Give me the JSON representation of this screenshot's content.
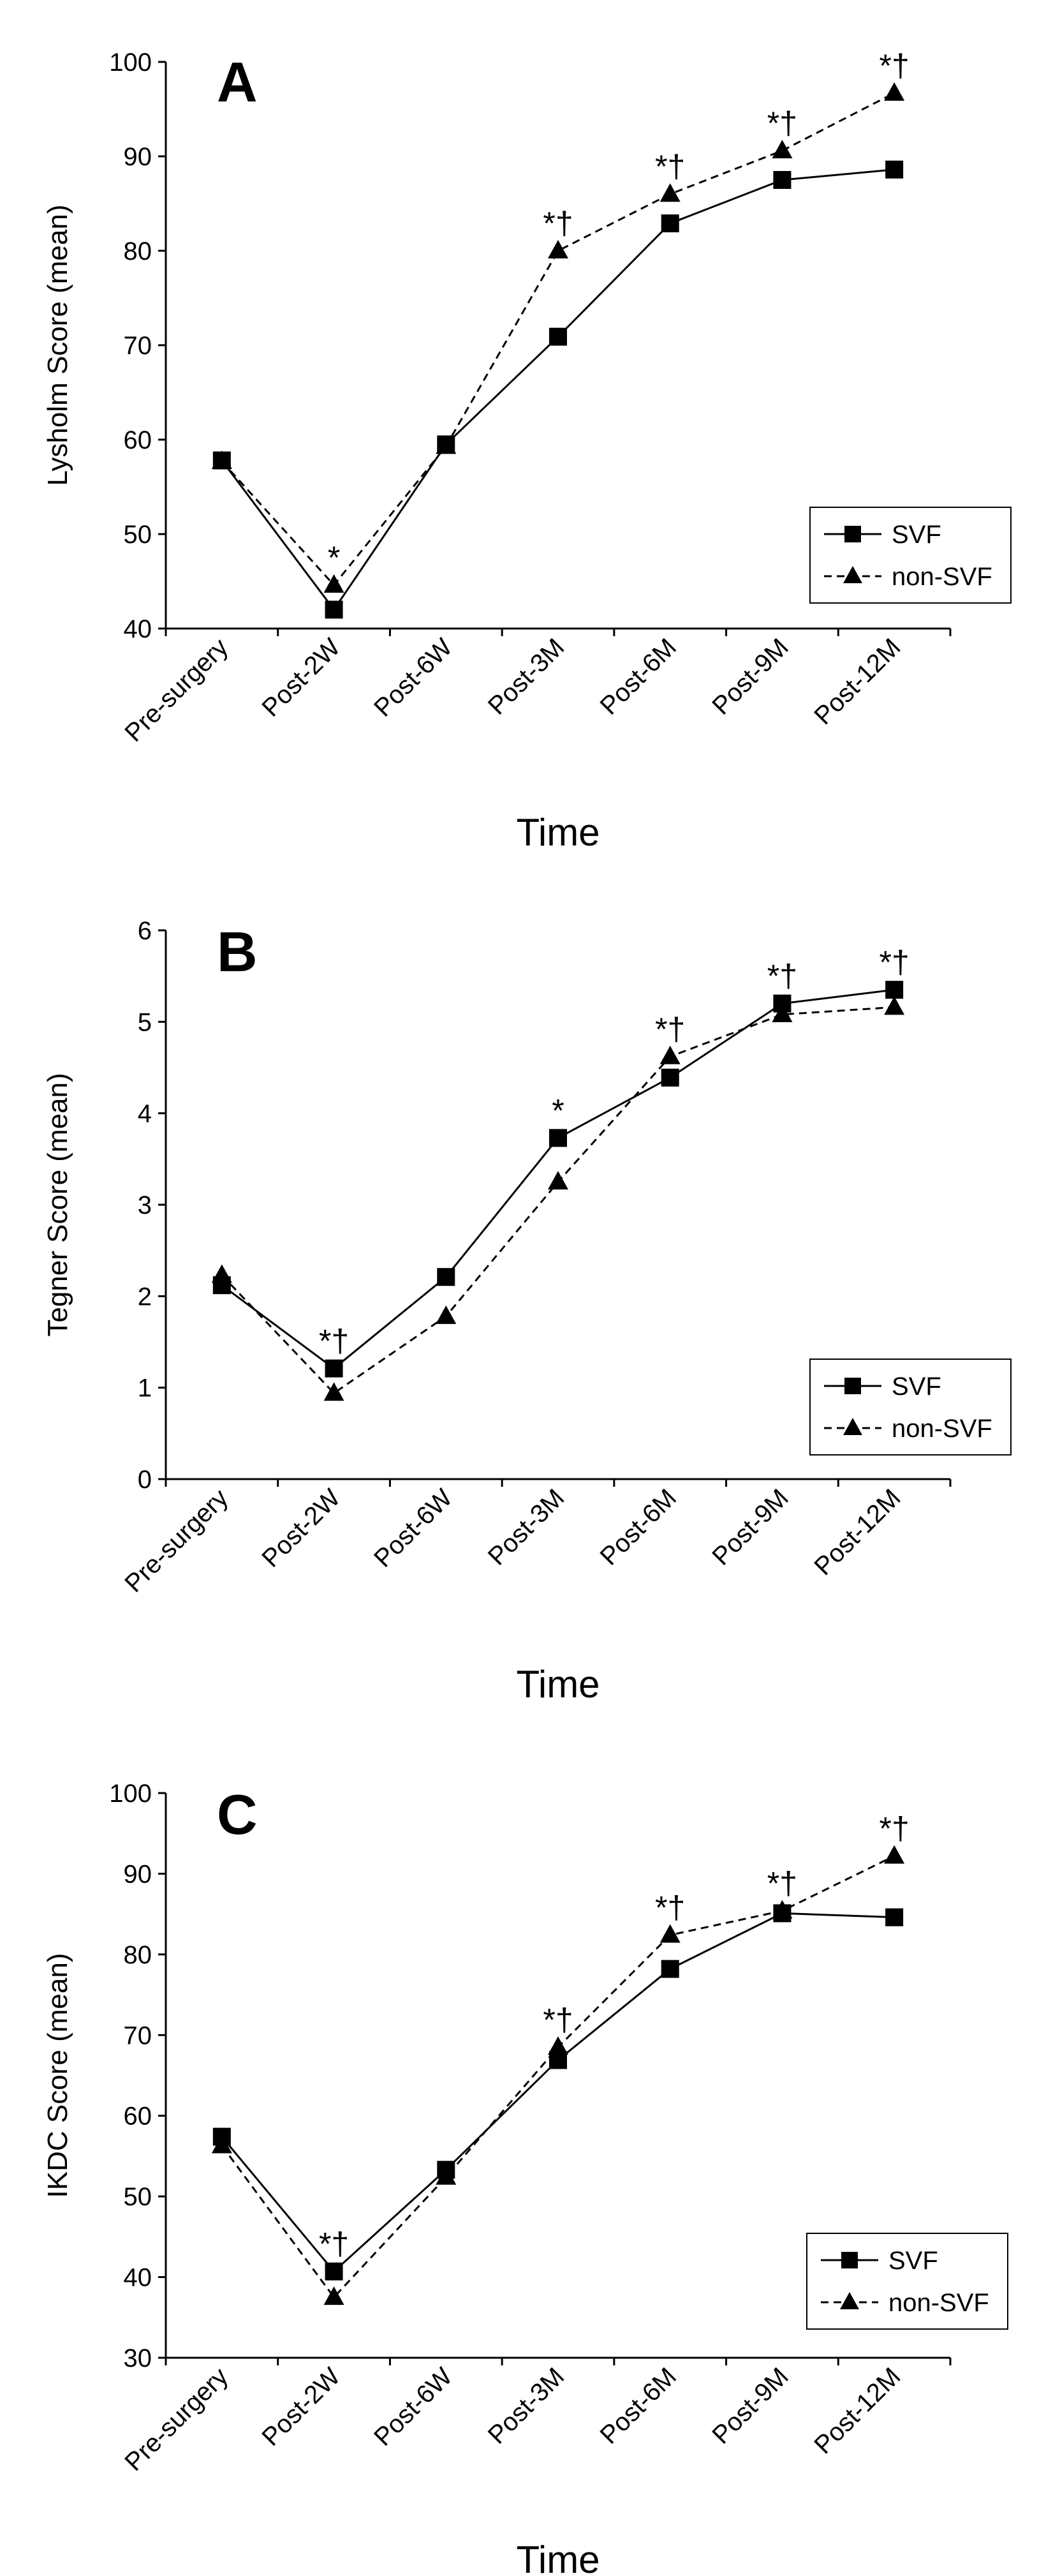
{
  "chart_data": [
    {
      "type": "line",
      "panel": "A",
      "title": "",
      "xlabel": "Time",
      "ylabel": "Lysholm Score (mean)",
      "ylim": [
        40,
        100
      ],
      "ytick_step": 10,
      "categories": [
        "Pre-surgery",
        "Post-2W",
        "Post-6W",
        "Post-3M",
        "Post-6M",
        "Post-9M",
        "Post-12M"
      ],
      "series": [
        {
          "name": "SVF",
          "marker": "square",
          "dash": "solid",
          "values": [
            57.8,
            42.0,
            59.5,
            70.9,
            82.9,
            87.5,
            88.6
          ]
        },
        {
          "name": "non-SVF",
          "marker": "triangle",
          "dash": "dashed",
          "values": [
            57.7,
            44.6,
            59.3,
            80.0,
            86.0,
            90.6,
            96.7
          ]
        }
      ],
      "annotations": [
        "",
        "*",
        "",
        "*†",
        "*†",
        "*†",
        "*†"
      ],
      "legend": "bottom-right"
    },
    {
      "type": "line",
      "panel": "B",
      "title": "",
      "xlabel": "Time",
      "ylabel": "Tegner Score (mean)",
      "ylim": [
        0,
        6
      ],
      "ytick_step": 1,
      "categories": [
        "Pre-surgery",
        "Post-2W",
        "Post-6W",
        "Post-3M",
        "Post-6M",
        "Post-9M",
        "Post-12M"
      ],
      "series": [
        {
          "name": "SVF",
          "marker": "square",
          "dash": "solid",
          "values": [
            2.12,
            1.21,
            2.21,
            3.73,
            4.39,
            5.2,
            5.35
          ]
        },
        {
          "name": "non-SVF",
          "marker": "triangle",
          "dash": "dashed",
          "values": [
            2.23,
            0.94,
            1.78,
            3.25,
            4.62,
            5.08,
            5.16
          ]
        }
      ],
      "annotations": [
        "",
        "*†",
        "",
        "*",
        "*†",
        "*†",
        "*†"
      ],
      "legend": "bottom-right"
    },
    {
      "type": "line",
      "panel": "C",
      "title": "",
      "xlabel": "Time",
      "ylabel": "IKDC Score (mean)",
      "ylim": [
        30,
        100
      ],
      "ytick_step": 10,
      "categories": [
        "Pre-surgery",
        "Post-2W",
        "Post-6W",
        "Post-3M",
        "Post-6M",
        "Post-9M",
        "Post-12M"
      ],
      "series": [
        {
          "name": "SVF",
          "marker": "square",
          "dash": "solid",
          "values": [
            57.4,
            40.7,
            53.3,
            66.9,
            78.2,
            85.1,
            84.6
          ]
        },
        {
          "name": "non-SVF",
          "marker": "triangle",
          "dash": "dashed",
          "values": [
            56.3,
            37.5,
            52.4,
            68.5,
            82.4,
            85.4,
            92.2
          ]
        }
      ],
      "annotations": [
        "",
        "*†",
        "",
        "*†",
        "*†",
        "*†",
        "*†"
      ],
      "legend": "bottom-right"
    }
  ]
}
